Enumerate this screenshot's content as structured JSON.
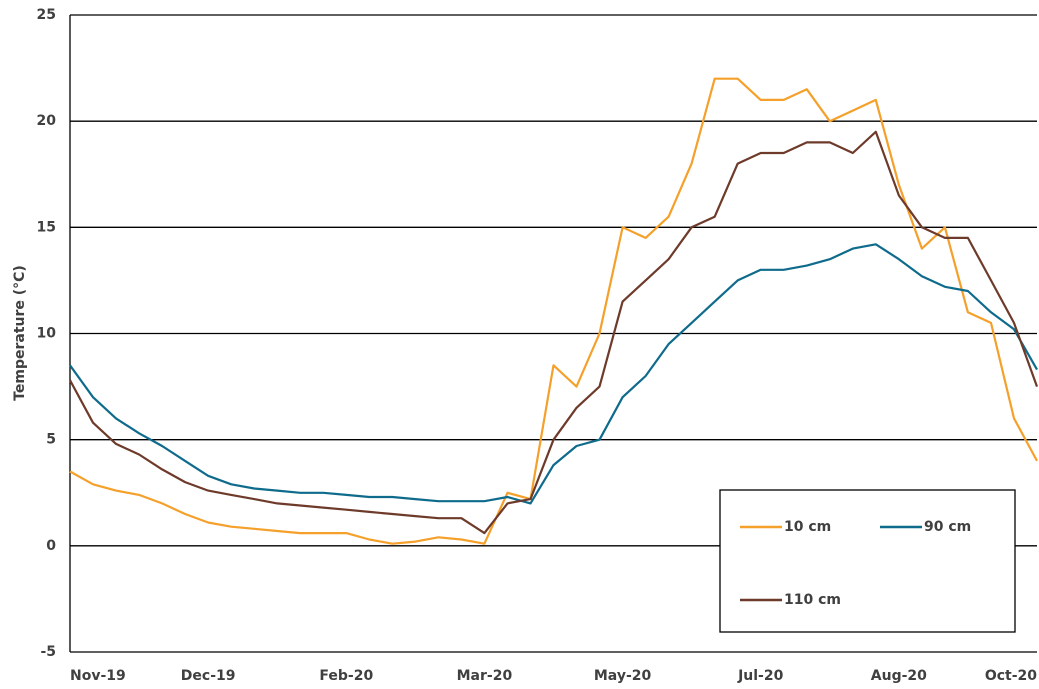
{
  "chart_data": {
    "type": "line",
    "y_label": "Temperature (°C)",
    "categories": [
      "Nov-19",
      null,
      null,
      null,
      null,
      null,
      "Dec-19",
      null,
      null,
      null,
      null,
      null,
      "Feb-20",
      null,
      null,
      null,
      null,
      null,
      "Mar-20",
      null,
      null,
      null,
      null,
      null,
      "May-20",
      null,
      null,
      null,
      null,
      null,
      "Jul-20",
      null,
      null,
      null,
      null,
      null,
      "Aug-20",
      null,
      null,
      null,
      null,
      null,
      "Oct-20"
    ],
    "series": [
      {
        "name": "10 cm",
        "color": "#f5a02a",
        "values": [
          3.5,
          2.9,
          2.6,
          2.4,
          2.0,
          1.5,
          1.1,
          0.9,
          0.8,
          0.7,
          0.6,
          0.6,
          0.6,
          0.3,
          0.1,
          0.2,
          0.4,
          0.3,
          0.1,
          2.5,
          2.2,
          8.5,
          7.5,
          10,
          15,
          14.5,
          15.5,
          18,
          22,
          22,
          21,
          21,
          21.5,
          20,
          20.5,
          21,
          17,
          14,
          15,
          11,
          10.5,
          6,
          4
        ]
      },
      {
        "name": "90 cm",
        "color": "#0f6b8c",
        "values": [
          8.5,
          7.0,
          6.0,
          5.3,
          4.7,
          4.0,
          3.3,
          2.9,
          2.7,
          2.6,
          2.5,
          2.5,
          2.4,
          2.3,
          2.3,
          2.2,
          2.1,
          2.1,
          2.1,
          2.3,
          2.0,
          3.8,
          4.7,
          5.0,
          7.0,
          8.0,
          9.5,
          10.5,
          11.5,
          12.5,
          13,
          13,
          13.2,
          13.5,
          14,
          14.2,
          13.5,
          12.7,
          12.2,
          12,
          11,
          10.2,
          8.3
        ]
      },
      {
        "name": "110 cm",
        "color": "#6e3b2b",
        "values": [
          7.8,
          5.8,
          4.8,
          4.3,
          3.6,
          3.0,
          2.6,
          2.4,
          2.2,
          2.0,
          1.9,
          1.8,
          1.7,
          1.6,
          1.5,
          1.4,
          1.3,
          1.3,
          0.6,
          2.0,
          2.2,
          5,
          6.5,
          7.5,
          11.5,
          12.5,
          13.5,
          15,
          15.5,
          18,
          18.5,
          18.5,
          19,
          19,
          18.5,
          19.5,
          16.5,
          15,
          14.5,
          14.5,
          12.5,
          10.5,
          7.5
        ]
      }
    ],
    "ylim": [
      -5,
      25
    ],
    "yticks": [
      -5,
      0,
      5,
      10,
      15,
      20,
      25
    ],
    "grid": true,
    "legend": "lower right"
  }
}
